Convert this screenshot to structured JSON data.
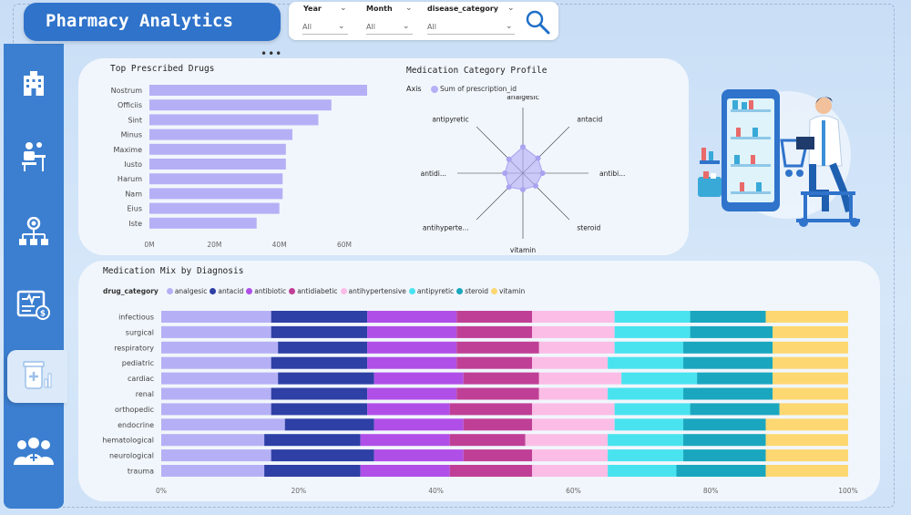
{
  "app": {
    "title": "Pharmacy Analytics"
  },
  "filters": [
    {
      "label": "Year",
      "value": "All"
    },
    {
      "label": "Month",
      "value": "All"
    },
    {
      "label": "disease_category",
      "value": "All"
    }
  ],
  "colors": {
    "analgesic": "#b5b0f5",
    "antacid": "#2e3fa5",
    "antibiotic": "#b04fe8",
    "antidiabetic": "#c03f96",
    "antihypertensive": "#fbbde6",
    "antipyretic": "#49e3ef",
    "steroid": "#1aa6bf",
    "vitamin": "#fdd771"
  },
  "top_drugs": {
    "title": "Top Prescribed Drugs",
    "categories": [
      "Nostrum",
      "Officiis",
      "Sint",
      "Minus",
      "Maxime",
      "Iusto",
      "Harum",
      "Nam",
      "Eius",
      "Iste"
    ],
    "values": [
      67,
      56,
      52,
      44,
      42,
      42,
      41,
      41,
      40,
      33
    ],
    "unit": "M",
    "xticks": [
      "0M",
      "20M",
      "40M",
      "60M"
    ],
    "xlim": [
      0,
      60
    ]
  },
  "radar": {
    "title": "Medication Category Profile",
    "legend_title": "Axis",
    "legend_entry": "Sum of prescription_id",
    "axes": [
      "analgesic",
      "antacid",
      "antibi...",
      "steroid",
      "vitamin",
      "antihyperte...",
      "antidi...",
      "antipyretic"
    ],
    "values": [
      0.8,
      0.65,
      0.6,
      0.55,
      0.5,
      0.6,
      0.55,
      0.6
    ]
  },
  "mix": {
    "title": "Medication Mix by Diagnosis",
    "legend_title": "drug_category",
    "series_names": [
      "analgesic",
      "antacid",
      "antibiotic",
      "antidiabetic",
      "antihypertensive",
      "antipyretic",
      "steroid",
      "vitamin"
    ],
    "categories": [
      "infectious",
      "surgical",
      "respiratory",
      "pediatric",
      "cardiac",
      "renal",
      "orthopedic",
      "endocrine",
      "hematological",
      "neurological",
      "trauma"
    ],
    "rows": [
      [
        16,
        14,
        13,
        11,
        12,
        11,
        11,
        12
      ],
      [
        16,
        14,
        13,
        11,
        12,
        11,
        12,
        11
      ],
      [
        17,
        13,
        13,
        12,
        11,
        10,
        13,
        11
      ],
      [
        16,
        14,
        13,
        11,
        11,
        11,
        13,
        11
      ],
      [
        17,
        14,
        13,
        11,
        12,
        11,
        11,
        11
      ],
      [
        16,
        14,
        13,
        12,
        10,
        11,
        13,
        11
      ],
      [
        16,
        14,
        12,
        12,
        12,
        11,
        13,
        10
      ],
      [
        18,
        13,
        13,
        10,
        12,
        10,
        12,
        12
      ],
      [
        15,
        14,
        13,
        11,
        12,
        11,
        12,
        12
      ],
      [
        16,
        15,
        13,
        10,
        11,
        11,
        12,
        12
      ],
      [
        15,
        14,
        13,
        12,
        11,
        10,
        13,
        12
      ]
    ],
    "xticks": [
      "0%",
      "20%",
      "40%",
      "60%",
      "80%",
      "100%"
    ]
  }
}
